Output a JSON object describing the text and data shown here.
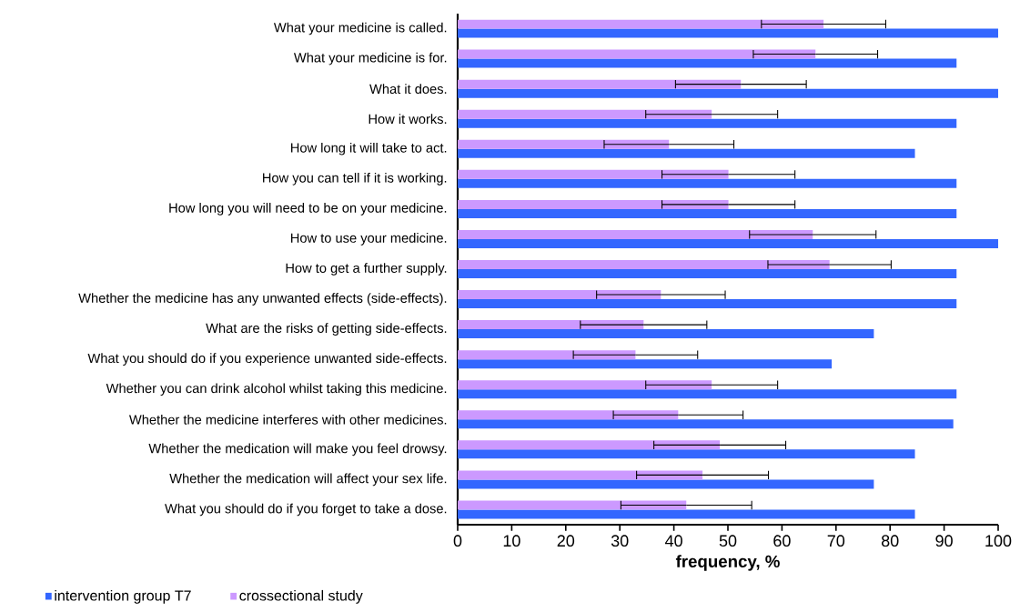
{
  "chart_data": {
    "type": "bar",
    "orientation": "horizontal",
    "xlabel": "frequency, %",
    "categories": [
      "What your medicine is called.",
      "What your medicine is for.",
      "What it does.",
      "How it works.",
      "How long it will take to act.",
      "How you can tell if it is working.",
      "How long you will need to be on your medicine.",
      "How to use your medicine.",
      "How to get a further supply.",
      "Whether the medicine has any unwanted effects (side-effects).",
      "What are the risks of getting side-effects.",
      "What you should do if you experience unwanted side-effects.",
      "Whether you can drink alcohol whilst taking this medicine.",
      "Whether the medicine interferes with other medicines.",
      "Whether the medication will make you feel drowsy.",
      "Whether the medication will affect your sex life.",
      "What you should do if you forget to take a dose."
    ],
    "series": [
      {
        "name": "intervention group T7",
        "color": "#3366ff",
        "values": [
          100,
          92.3,
          100,
          92.3,
          84.6,
          92.3,
          92.3,
          100,
          92.3,
          92.3,
          77.0,
          69.2,
          92.3,
          91.7,
          84.6,
          77.0,
          84.6
        ]
      },
      {
        "name": "crossectional study",
        "color": "#cc99ff",
        "values": [
          67.7,
          66.2,
          52.4,
          47.0,
          39.1,
          50.1,
          50.1,
          65.7,
          68.8,
          37.6,
          34.4,
          32.9,
          47.0,
          40.8,
          48.5,
          45.3,
          42.3
        ],
        "errors": [
          11.5,
          11.5,
          12.1,
          12.2,
          12.0,
          12.3,
          12.3,
          11.7,
          11.4,
          11.9,
          11.7,
          11.5,
          12.2,
          12.0,
          12.2,
          12.2,
          12.1
        ]
      }
    ],
    "xlim": [
      0,
      100
    ],
    "xticks": [
      0,
      10,
      20,
      30,
      40,
      50,
      60,
      70,
      80,
      90,
      100
    ],
    "grid": false,
    "legend": "bottom left"
  }
}
